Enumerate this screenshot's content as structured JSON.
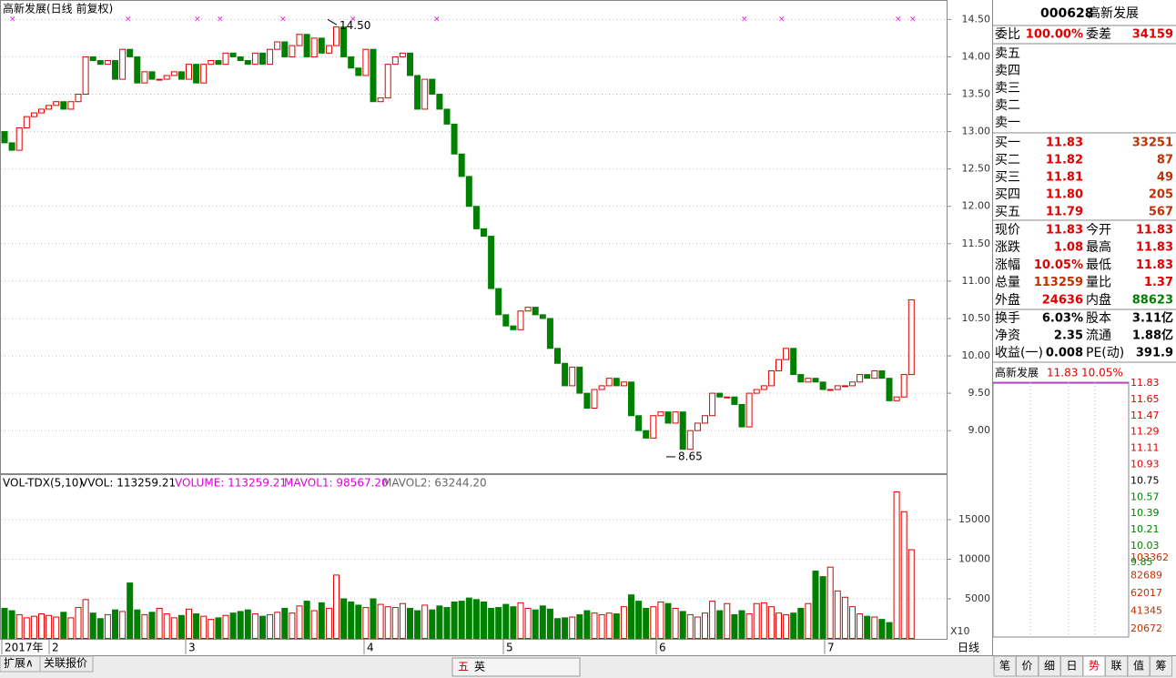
{
  "chart_data": {
    "type": "candlestick",
    "title": "高新发展(日线 前复权)",
    "x_labels": [
      "2017年",
      "2",
      "3",
      "4",
      "5",
      "6",
      "7"
    ],
    "open": [
      13.0,
      12.85,
      12.75,
      13.05,
      13.2,
      13.25,
      13.3,
      13.35,
      13.4,
      13.3,
      13.4,
      13.5,
      14.0,
      13.95,
      13.9,
      13.95,
      13.7,
      14.1,
      14.0,
      13.65,
      13.8,
      13.7,
      13.7,
      13.75,
      13.8,
      13.7,
      13.9,
      13.65,
      13.9,
      13.95,
      13.9,
      14.05,
      14.0,
      13.95,
      13.9,
      14.05,
      13.9,
      14.1,
      14.2,
      14.0,
      14.15,
      14.3,
      14.0,
      14.25,
      14.05,
      14.15,
      14.4,
      14.0,
      13.85,
      13.75,
      14.1,
      13.4,
      13.45,
      13.9,
      14.0,
      14.05,
      13.75,
      13.3,
      13.7,
      13.5,
      13.3,
      13.1,
      12.7,
      12.4,
      12.0,
      11.7,
      11.6,
      10.9,
      10.55,
      10.4,
      10.35,
      10.6,
      10.65,
      10.55,
      10.5,
      10.1,
      9.9,
      9.6,
      9.85,
      9.5,
      9.3,
      9.55,
      9.6,
      9.7,
      9.6,
      9.65,
      9.2,
      9.0,
      8.9,
      9.2,
      9.25,
      9.1,
      9.25,
      8.75,
      9.0,
      9.1,
      9.2,
      9.5,
      9.45,
      9.45,
      9.35,
      9.05,
      9.5,
      9.55,
      9.6,
      9.8,
      9.95,
      10.1,
      9.75,
      9.65,
      9.7,
      9.65,
      9.55,
      9.55,
      9.6,
      9.6,
      9.65,
      9.75,
      9.7,
      9.8,
      9.7,
      9.4,
      9.45,
      9.75
    ],
    "close": [
      12.85,
      12.75,
      13.05,
      13.2,
      13.25,
      13.3,
      13.35,
      13.4,
      13.3,
      13.4,
      13.5,
      14.0,
      13.95,
      13.9,
      13.95,
      13.7,
      14.1,
      14.0,
      13.65,
      13.8,
      13.7,
      13.7,
      13.75,
      13.8,
      13.7,
      13.9,
      13.65,
      13.9,
      13.95,
      13.9,
      14.05,
      14.0,
      13.95,
      13.9,
      14.05,
      13.9,
      14.1,
      14.2,
      14.0,
      14.15,
      14.3,
      14.0,
      14.25,
      14.05,
      14.15,
      14.4,
      14.0,
      13.85,
      13.75,
      14.1,
      13.4,
      13.45,
      13.9,
      14.0,
      14.05,
      13.75,
      13.3,
      13.7,
      13.5,
      13.3,
      13.1,
      12.7,
      12.4,
      12.0,
      11.7,
      11.6,
      10.9,
      10.55,
      10.4,
      10.35,
      10.6,
      10.65,
      10.55,
      10.5,
      10.1,
      9.9,
      9.6,
      9.85,
      9.5,
      9.3,
      9.55,
      9.6,
      9.7,
      9.6,
      9.65,
      9.2,
      9.0,
      8.9,
      9.2,
      9.25,
      9.1,
      9.25,
      8.75,
      9.0,
      9.1,
      9.2,
      9.5,
      9.45,
      9.45,
      9.35,
      9.05,
      9.5,
      9.55,
      9.6,
      9.8,
      9.95,
      10.1,
      9.75,
      9.65,
      9.7,
      9.65,
      9.55,
      9.55,
      9.6,
      9.6,
      9.65,
      9.75,
      9.7,
      9.8,
      9.7,
      9.4,
      9.45,
      9.75,
      10.75
    ],
    "ylim": [
      8.43,
      14.76
    ],
    "yticks": [
      {
        "value": 14.5,
        "label": "14.50"
      },
      {
        "value": 14.0,
        "label": "14.00"
      },
      {
        "value": 13.5,
        "label": "13.50"
      },
      {
        "value": 13.0,
        "label": "13.00"
      },
      {
        "value": 12.5,
        "label": "12.50"
      },
      {
        "value": 12.0,
        "label": "12.00"
      },
      {
        "value": 11.5,
        "label": "11.50"
      },
      {
        "value": 11.0,
        "label": "11.00"
      },
      {
        "value": 10.5,
        "label": "10.50"
      },
      {
        "value": 10.0,
        "label": "10.00"
      },
      {
        "value": 9.5,
        "label": "9.50"
      },
      {
        "value": 9.0,
        "label": "9.00"
      }
    ],
    "annotations": [
      {
        "value": 14.5,
        "label": "14.50"
      },
      {
        "value": 8.65,
        "label": "8.65"
      }
    ],
    "up_color": "#e00000",
    "down_color": "#008000",
    "grid": true,
    "volume": {
      "legend": [
        "VOL-TDX(5,10)",
        "VVOL: 113259.21",
        "VOLUME: 113259.21",
        "MAVOL1: 98567.20",
        "MAVOL2: 63244.20"
      ],
      "values": [
        3800,
        3500,
        3000,
        2600,
        2800,
        3100,
        2900,
        2700,
        3300,
        2600,
        3900,
        4900,
        3200,
        2500,
        3000,
        3600,
        3400,
        7000,
        3600,
        3000,
        3300,
        3800,
        3100,
        2600,
        2900,
        3700,
        3100,
        2800,
        2400,
        2600,
        2900,
        3200,
        3400,
        3600,
        3100,
        2800,
        3000,
        3300,
        3800,
        3200,
        4100,
        4700,
        3500,
        4500,
        3800,
        8000,
        5000,
        4600,
        4200,
        3900,
        5000,
        4300,
        4000,
        3900,
        4400,
        3800,
        3500,
        4200,
        3600,
        4100,
        3900,
        4600,
        4700,
        5100,
        4900,
        4600,
        3800,
        3900,
        4300,
        4000,
        4500,
        3800,
        3600,
        4100,
        3700,
        2500,
        2600,
        2700,
        3000,
        3500,
        3200,
        3000,
        3200,
        3100,
        4000,
        5500,
        4700,
        3800,
        4000,
        4600,
        4400,
        3800,
        3400,
        3000,
        2700,
        3200,
        4700,
        3500,
        4400,
        3000,
        3500,
        3100,
        4400,
        4500,
        4000,
        3200,
        3000,
        3200,
        3800,
        4400,
        8500,
        7800,
        9000,
        6000,
        5200,
        4000,
        3100,
        2800,
        2700,
        2400,
        2000,
        18500,
        16000,
        11200
      ],
      "ylim": [
        0,
        20630
      ],
      "yticks": [
        5000,
        10000,
        15000
      ],
      "scale_label": "X10"
    }
  },
  "panel": {
    "code": "000628",
    "name": "高新发展",
    "weibi": [
      "委比",
      "100.00%",
      "委差",
      "34159"
    ],
    "sell": [
      "卖五",
      "卖四",
      "卖三",
      "卖二",
      "卖一"
    ],
    "buy": [
      [
        "买一",
        "11.83",
        "33251"
      ],
      [
        "买二",
        "11.82",
        "87"
      ],
      [
        "买三",
        "11.81",
        "49"
      ],
      [
        "买四",
        "11.80",
        "205"
      ],
      [
        "买五",
        "11.79",
        "567"
      ]
    ],
    "stats": [
      [
        "现价",
        "11.83",
        "今开",
        "11.83"
      ],
      [
        "涨跌",
        "1.08",
        "最高",
        "11.83"
      ],
      [
        "涨幅",
        "10.05%",
        "最低",
        "11.83"
      ],
      [
        "总量",
        "113259",
        "量比",
        "1.37"
      ],
      [
        "外盘",
        "24636",
        "内盘",
        "88623"
      ]
    ],
    "finance": [
      [
        "换手",
        "6.03%",
        "股本",
        "3.11亿"
      ],
      [
        "净资",
        "2.35",
        "流通",
        "1.88亿"
      ],
      [
        "收益(一)",
        "0.008",
        "PE(动)",
        "391.9"
      ]
    ],
    "intraday": {
      "name": "高新发展",
      "price": "11.83",
      "pct": "10.05%",
      "price_ticks": [
        "11.83",
        "11.65",
        "11.47",
        "11.29",
        "11.11",
        "10.93",
        "10.75",
        "10.57",
        "10.39",
        "10.21",
        "10.03",
        "9.85"
      ],
      "vol_ticks": [
        "103362",
        "82689",
        "62017",
        "41345",
        "20672"
      ]
    },
    "tabs": [
      "笔",
      "价",
      "细",
      "日",
      "势",
      "联",
      "值",
      "筹"
    ]
  },
  "ui": {
    "bottom_tabs": [
      "扩展∧",
      "关联报价"
    ],
    "period": "日线",
    "ime": [
      "五",
      "英"
    ]
  }
}
